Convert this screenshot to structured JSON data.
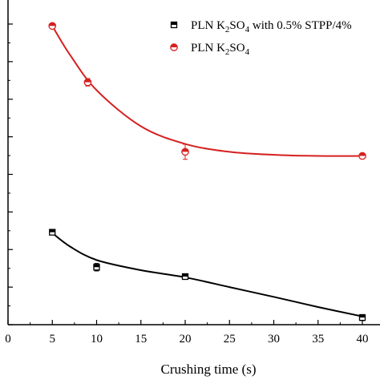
{
  "chart_data": {
    "type": "scatter",
    "title": "",
    "xlabel": "Crushing time (s)",
    "ylabel": "",
    "xlim": [
      0,
      42
    ],
    "x_ticks": [
      "0",
      "5",
      "10",
      "15",
      "20",
      "25",
      "30",
      "35",
      "40"
    ],
    "y_tick_count": 9,
    "grid": false,
    "legend_position": "top-right",
    "series": [
      {
        "id": "stpp",
        "label_main": "PLN K",
        "label_sub1": "2",
        "label_mid": "SO",
        "label_sub2": "4",
        "label_tail": " with 0.5% STPP/4%",
        "color": "#000000",
        "marker": "half-filled-square",
        "points": [
          {
            "x": 5,
            "y": 0.246,
            "err": 0.006
          },
          {
            "x": 10,
            "y": 0.153,
            "err": 0.01
          },
          {
            "x": 20,
            "y": 0.128,
            "err": 0.005
          },
          {
            "x": 40,
            "y": 0.019,
            "err": 0.008
          }
        ],
        "fit": [
          [
            5,
            0.244
          ],
          [
            7,
            0.208
          ],
          [
            10,
            0.172
          ],
          [
            15,
            0.145
          ],
          [
            20,
            0.126
          ],
          [
            25,
            0.1
          ],
          [
            30,
            0.074
          ],
          [
            35,
            0.047
          ],
          [
            40,
            0.022
          ]
        ]
      },
      {
        "id": "pln",
        "label_main": "PLN K",
        "label_sub1": "2",
        "label_mid": "SO",
        "label_sub2": "4",
        "label_tail": "",
        "color": "#d62020",
        "marker": "half-filled-circle",
        "points": [
          {
            "x": 5,
            "y": 0.795,
            "err": 0.006
          },
          {
            "x": 9,
            "y": 0.645,
            "err": 0.01
          },
          {
            "x": 20,
            "y": 0.46,
            "err": 0.02
          },
          {
            "x": 40,
            "y": 0.449,
            "err": 0.006
          }
        ],
        "fit": [
          [
            5,
            0.795
          ],
          [
            7,
            0.718
          ],
          [
            10,
            0.624
          ],
          [
            15,
            0.528
          ],
          [
            20,
            0.481
          ],
          [
            25,
            0.46
          ],
          [
            30,
            0.452
          ],
          [
            35,
            0.449
          ],
          [
            40,
            0.449
          ]
        ]
      }
    ]
  }
}
